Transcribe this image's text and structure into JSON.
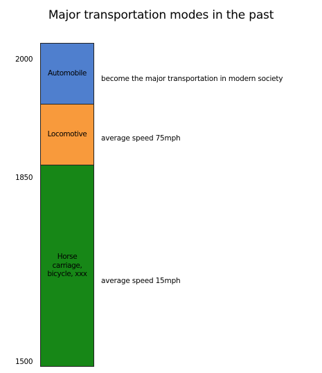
{
  "title": "Major transportation modes in the past",
  "axis": {
    "labels": [
      "2000",
      "1850",
      "1500"
    ]
  },
  "blocks": [
    {
      "label": "Automobile",
      "color": "#4f7fce",
      "description": "become the major transportation in modern society"
    },
    {
      "label": "Locomotive",
      "color": "#f89a3c",
      "description": "average speed 75mph"
    },
    {
      "label": "Horse carriage, bicycle, xxx",
      "color": "#178717",
      "description": "average speed 15mph"
    }
  ]
}
